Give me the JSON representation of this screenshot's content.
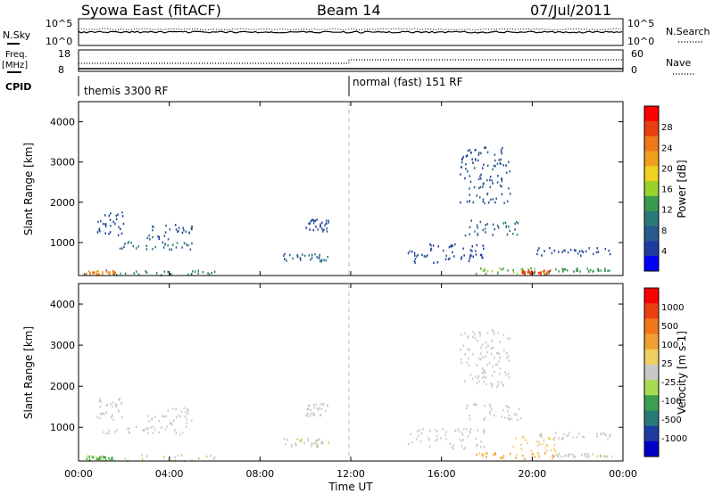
{
  "header": {
    "title": "Syowa East (fitACF)",
    "beam": "Beam 14",
    "date": "07/Jul/2011"
  },
  "top_panels": {
    "nsky_label": "N.Sky",
    "nsky_tick_hi": "10^5",
    "nsky_tick_lo": "10^0",
    "nsearch_label": "N.Search",
    "nsearch_tick_hi": "10^5",
    "nsearch_tick_lo": "10^0",
    "freq_label": "Freq.",
    "freq_unit": "[MHz]",
    "freq_tick_hi": "18",
    "freq_tick_lo": "8",
    "nave_label": "Nave",
    "nave_tick_hi": "60",
    "nave_tick_lo": "0",
    "cpid_label": "CPID",
    "cpid_first": "themis 3300 RF",
    "cpid_second": "normal (fast) 151 RF"
  },
  "axes": {
    "y_label": "Slant Range [km]",
    "y_ticks": [
      "4000",
      "3000",
      "2000",
      "1000"
    ],
    "x_label": "Time UT",
    "x_ticks": [
      "00:00",
      "04:00",
      "08:00",
      "12:00",
      "16:00",
      "20:00",
      "00:00"
    ]
  },
  "colorbars": {
    "power_label": "Power [dB]",
    "power_ticks": [
      "28",
      "24",
      "20",
      "16",
      "12",
      "8",
      "4"
    ],
    "power_colors": [
      "#0000ff",
      "#1e3ca0",
      "#2a5a8c",
      "#2a7a78",
      "#3a9a50",
      "#9ad22a",
      "#f0d020",
      "#f0a020",
      "#f07818",
      "#e84010",
      "#ff0000"
    ],
    "velocity_label": "Velocity [m s-1]",
    "velocity_ticks": [
      "1000",
      "500",
      "100",
      "25",
      "-25",
      "-100",
      "-500",
      "-1000"
    ],
    "velocity_colors": [
      "#0000c8",
      "#1e3ca0",
      "#2a7a78",
      "#3aa050",
      "#a8dc50",
      "#c8c8c8",
      "#f0d060",
      "#f0a030",
      "#f07818",
      "#e84010",
      "#ff0000"
    ]
  },
  "chart_data": {
    "type": "heatmap",
    "title": "Syowa East (fitACF)",
    "xlabel": "Time UT",
    "ylabel": "Slant Range [km]",
    "xlim": [
      0,
      24
    ],
    "ylim": [
      180,
      4500
    ],
    "panels": [
      {
        "name": "Power",
        "clabel": "Power [dB]",
        "clim": [
          0,
          30
        ],
        "blobs": [
          {
            "x": [
              0.2,
              6.0
            ],
            "y": [
              200,
              350
            ],
            "value": 10
          },
          {
            "x": [
              0.3,
              1.8
            ],
            "y": [
              220,
              320
            ],
            "value": 22
          },
          {
            "x": [
              1.0,
              5.0
            ],
            "y": [
              850,
              1050
            ],
            "value": 8
          },
          {
            "x": [
              3.0,
              5.0
            ],
            "y": [
              1100,
              1500
            ],
            "value": 6
          },
          {
            "x": [
              0.8,
              2.0
            ],
            "y": [
              1200,
              1800
            ],
            "value": 5
          },
          {
            "x": [
              9.0,
              11.0
            ],
            "y": [
              550,
              750
            ],
            "value": 8
          },
          {
            "x": [
              10.0,
              11.0
            ],
            "y": [
              1300,
              1600
            ],
            "value": 5
          },
          {
            "x": [
              17.0,
              19.5
            ],
            "y": [
              1200,
              1600
            ],
            "value": 8
          },
          {
            "x": [
              17.5,
              21.0
            ],
            "y": [
              250,
              400
            ],
            "value": 14
          },
          {
            "x": [
              19.5,
              20.8
            ],
            "y": [
              230,
              330
            ],
            "value": 26
          },
          {
            "x": [
              20.0,
              23.5
            ],
            "y": [
              700,
              900
            ],
            "value": 5
          },
          {
            "x": [
              14.5,
              18.0
            ],
            "y": [
              500,
              1000
            ],
            "value": 5
          },
          {
            "x": [
              16.8,
              19.0
            ],
            "y": [
              2000,
              3400
            ],
            "value": 6
          },
          {
            "x": [
              21.0,
              23.5
            ],
            "y": [
              300,
              380
            ],
            "value": 12
          }
        ]
      },
      {
        "name": "Velocity",
        "clabel": "Velocity [m s-1]",
        "clim": [
          -1000,
          1000
        ],
        "blobs": [
          {
            "x": [
              0.2,
              6.0
            ],
            "y": [
              200,
              350
            ],
            "value": -80
          },
          {
            "x": [
              0.3,
              1.5
            ],
            "y": [
              220,
              320
            ],
            "value": -300
          },
          {
            "x": [
              1.0,
              5.0
            ],
            "y": [
              850,
              1050
            ],
            "value": 0
          },
          {
            "x": [
              3.0,
              5.0
            ],
            "y": [
              1100,
              1500
            ],
            "value": 0
          },
          {
            "x": [
              0.8,
              2.0
            ],
            "y": [
              1200,
              1800
            ],
            "value": 0
          },
          {
            "x": [
              9.0,
              11.0
            ],
            "y": [
              550,
              750
            ],
            "value": -60
          },
          {
            "x": [
              10.0,
              11.0
            ],
            "y": [
              1300,
              1600
            ],
            "value": 10
          },
          {
            "x": [
              17.0,
              19.5
            ],
            "y": [
              1200,
              1600
            ],
            "value": 0
          },
          {
            "x": [
              17.5,
              21.0
            ],
            "y": [
              250,
              400
            ],
            "value": 300
          },
          {
            "x": [
              19.0,
              21.0
            ],
            "y": [
              400,
              800
            ],
            "value": 150
          },
          {
            "x": [
              20.0,
              23.5
            ],
            "y": [
              700,
              900
            ],
            "value": 0
          },
          {
            "x": [
              14.5,
              18.0
            ],
            "y": [
              500,
              1000
            ],
            "value": 0
          },
          {
            "x": [
              16.8,
              19.0
            ],
            "y": [
              2000,
              3400
            ],
            "value": 0
          },
          {
            "x": [
              21.0,
              23.5
            ],
            "y": [
              300,
              380
            ],
            "value": -30
          }
        ]
      }
    ]
  }
}
